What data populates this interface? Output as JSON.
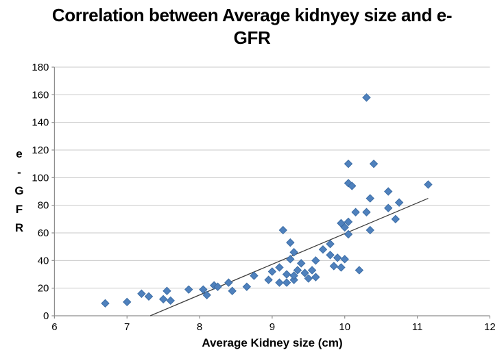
{
  "chart_data": {
    "type": "scatter",
    "title": "Correlation between Average kidnyey size and e-GFR",
    "title_lines": [
      "Correlation between Average kidnyey size and e-",
      "GFR"
    ],
    "xlabel": "Average Kidney size (cm)",
    "ylabel": "e-GFR",
    "ylabel_stacked": [
      "e",
      "-",
      "G",
      "F",
      "R"
    ],
    "xlim": [
      6,
      12
    ],
    "ylim": [
      0,
      180
    ],
    "x_ticks": [
      6,
      7,
      8,
      9,
      10,
      11,
      12
    ],
    "y_ticks": [
      0,
      20,
      40,
      60,
      80,
      100,
      120,
      140,
      160,
      180
    ],
    "grid": "horizontal-only",
    "legend": "none",
    "marker": "diamond",
    "colors": {
      "marker_fill": "#4F81BD",
      "marker_edge": "#3C6DA5",
      "gridline": "#C8C8C8",
      "axis": "#8E8E8E",
      "trendline": "#3F3F3F",
      "text": "#000000"
    },
    "trendline": {
      "x1": 7.32,
      "y1": 0,
      "x2": 11.15,
      "y2": 85
    },
    "points": [
      [
        6.7,
        9
      ],
      [
        7.0,
        10
      ],
      [
        7.2,
        16
      ],
      [
        7.3,
        14
      ],
      [
        7.5,
        12
      ],
      [
        7.55,
        18
      ],
      [
        7.6,
        11
      ],
      [
        7.85,
        19
      ],
      [
        8.05,
        19
      ],
      [
        8.1,
        15
      ],
      [
        8.2,
        22
      ],
      [
        8.25,
        21
      ],
      [
        8.4,
        24
      ],
      [
        8.45,
        18
      ],
      [
        8.65,
        21
      ],
      [
        8.75,
        29
      ],
      [
        8.95,
        26
      ],
      [
        9.0,
        32
      ],
      [
        9.1,
        24
      ],
      [
        9.1,
        35
      ],
      [
        9.15,
        62
      ],
      [
        9.2,
        24
      ],
      [
        9.2,
        30
      ],
      [
        9.25,
        41
      ],
      [
        9.25,
        53
      ],
      [
        9.3,
        26
      ],
      [
        9.3,
        29
      ],
      [
        9.3,
        46
      ],
      [
        9.35,
        33
      ],
      [
        9.4,
        38
      ],
      [
        9.45,
        31
      ],
      [
        9.5,
        27
      ],
      [
        9.55,
        33
      ],
      [
        9.6,
        28
      ],
      [
        9.6,
        40
      ],
      [
        9.7,
        48
      ],
      [
        9.8,
        44
      ],
      [
        9.8,
        52
      ],
      [
        9.85,
        36
      ],
      [
        9.9,
        42
      ],
      [
        9.95,
        35
      ],
      [
        9.95,
        67
      ],
      [
        10.0,
        41
      ],
      [
        10.0,
        64
      ],
      [
        10.05,
        59
      ],
      [
        10.05,
        68
      ],
      [
        10.05,
        96
      ],
      [
        10.05,
        110
      ],
      [
        10.1,
        94
      ],
      [
        10.15,
        75
      ],
      [
        10.2,
        33
      ],
      [
        10.3,
        75
      ],
      [
        10.3,
        158
      ],
      [
        10.35,
        62
      ],
      [
        10.35,
        85
      ],
      [
        10.4,
        110
      ],
      [
        10.6,
        78
      ],
      [
        10.6,
        90
      ],
      [
        10.7,
        70
      ],
      [
        10.75,
        82
      ],
      [
        11.15,
        95
      ]
    ]
  }
}
